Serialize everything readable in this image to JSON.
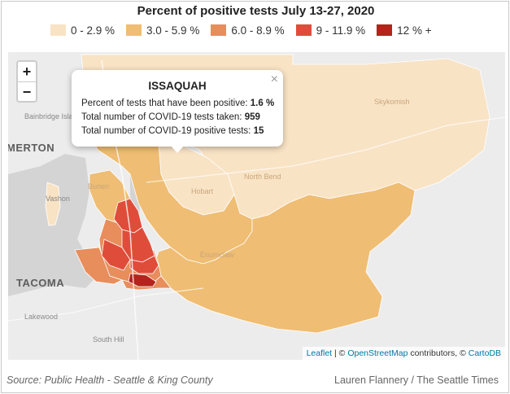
{
  "title": "Percent of positive tests July 13-27, 2020",
  "legend": [
    {
      "label": "0 - 2.9 %",
      "color": "#f9e3c5"
    },
    {
      "label": "3.0 - 5.9 %",
      "color": "#efbd73"
    },
    {
      "label": "6.0 - 8.9 %",
      "color": "#e88d5c"
    },
    {
      "label": "9 - 11.9 %",
      "color": "#df4d3a"
    },
    {
      "label": "12 % +",
      "color": "#b3241d"
    }
  ],
  "zoom": {
    "in": "+",
    "out": "−"
  },
  "popup": {
    "title": "ISSAQUAH",
    "close": "×",
    "rows": [
      {
        "label": "Percent of tests that have been positive:",
        "value": "1.6 %"
      },
      {
        "label": "Total number of COVID-19 tests taken:",
        "value": "959"
      },
      {
        "label": "Total number of COVID-19 positive tests:",
        "value": "15"
      }
    ]
  },
  "places": {
    "bainbridge": "Bainbridge Island",
    "merton": "MERTON",
    "vashon": "Vashon",
    "burien": "Burien",
    "skykomish": "Skykomish",
    "north_bend": "North Bend",
    "hobart": "Hobart",
    "enumclaw": "Enumclaw",
    "tacoma": "TACOMA",
    "lakewood": "Lakewood",
    "south_hill": "South Hill"
  },
  "attribution": {
    "leaflet": "Leaflet",
    "sep1": " | © ",
    "osm": "OpenStreetMap",
    "mid": " contributors, © ",
    "carto": "CartoDB"
  },
  "footer": {
    "source": "Source: Public Health - Seattle & King County",
    "credit": "Lauren Flannery / The Seattle Times"
  }
}
